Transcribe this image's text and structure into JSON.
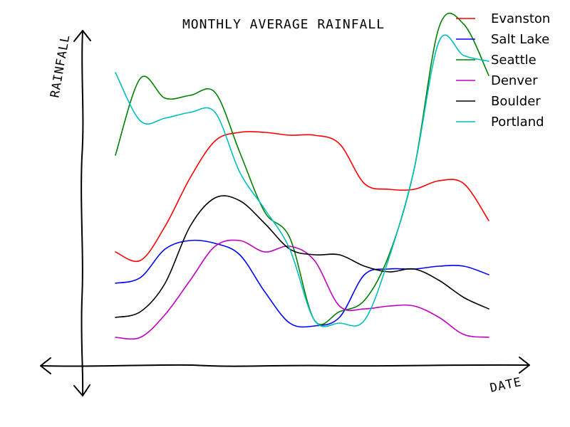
{
  "chart_data": {
    "type": "line",
    "title": "MONTHLY AVERAGE RAINFALL",
    "xlabel": "DATE",
    "ylabel": "RAINFALL",
    "legend_position": "top-right",
    "x": [
      0,
      0.067,
      0.133,
      0.2,
      0.267,
      0.333,
      0.4,
      0.467,
      0.533,
      0.6,
      0.667,
      0.733,
      0.8,
      0.867,
      0.933,
      1.0
    ],
    "series": [
      {
        "name": "Evanston",
        "color": "#ff0000",
        "values": [
          0.36,
          0.33,
          0.45,
          0.62,
          0.75,
          0.78,
          0.78,
          0.77,
          0.77,
          0.74,
          0.6,
          0.58,
          0.58,
          0.61,
          0.6,
          0.47
        ]
      },
      {
        "name": "Salt Lake",
        "color": "#0000ff",
        "values": [
          0.25,
          0.27,
          0.37,
          0.4,
          0.39,
          0.35,
          0.22,
          0.11,
          0.1,
          0.13,
          0.28,
          0.3,
          0.3,
          0.31,
          0.31,
          0.28
        ]
      },
      {
        "name": "Seattle",
        "color": "#008000",
        "values": [
          0.7,
          0.97,
          0.9,
          0.91,
          0.92,
          0.71,
          0.5,
          0.41,
          0.12,
          0.15,
          0.19,
          0.35,
          0.65,
          1.15,
          1.16,
          0.98
        ]
      },
      {
        "name": "Denver",
        "color": "#c000c0",
        "values": [
          0.06,
          0.06,
          0.14,
          0.26,
          0.38,
          0.4,
          0.36,
          0.38,
          0.33,
          0.17,
          0.16,
          0.17,
          0.17,
          0.13,
          0.07,
          0.06
        ]
      },
      {
        "name": "Boulder",
        "color": "#000000",
        "values": [
          0.13,
          0.15,
          0.25,
          0.45,
          0.55,
          0.54,
          0.46,
          0.37,
          0.35,
          0.35,
          0.31,
          0.29,
          0.3,
          0.26,
          0.2,
          0.16
        ]
      },
      {
        "name": "Portland",
        "color": "#00bfbf",
        "values": [
          0.99,
          0.82,
          0.83,
          0.85,
          0.85,
          0.64,
          0.51,
          0.37,
          0.12,
          0.11,
          0.12,
          0.34,
          0.65,
          1.1,
          1.05,
          1.03
        ]
      }
    ]
  }
}
